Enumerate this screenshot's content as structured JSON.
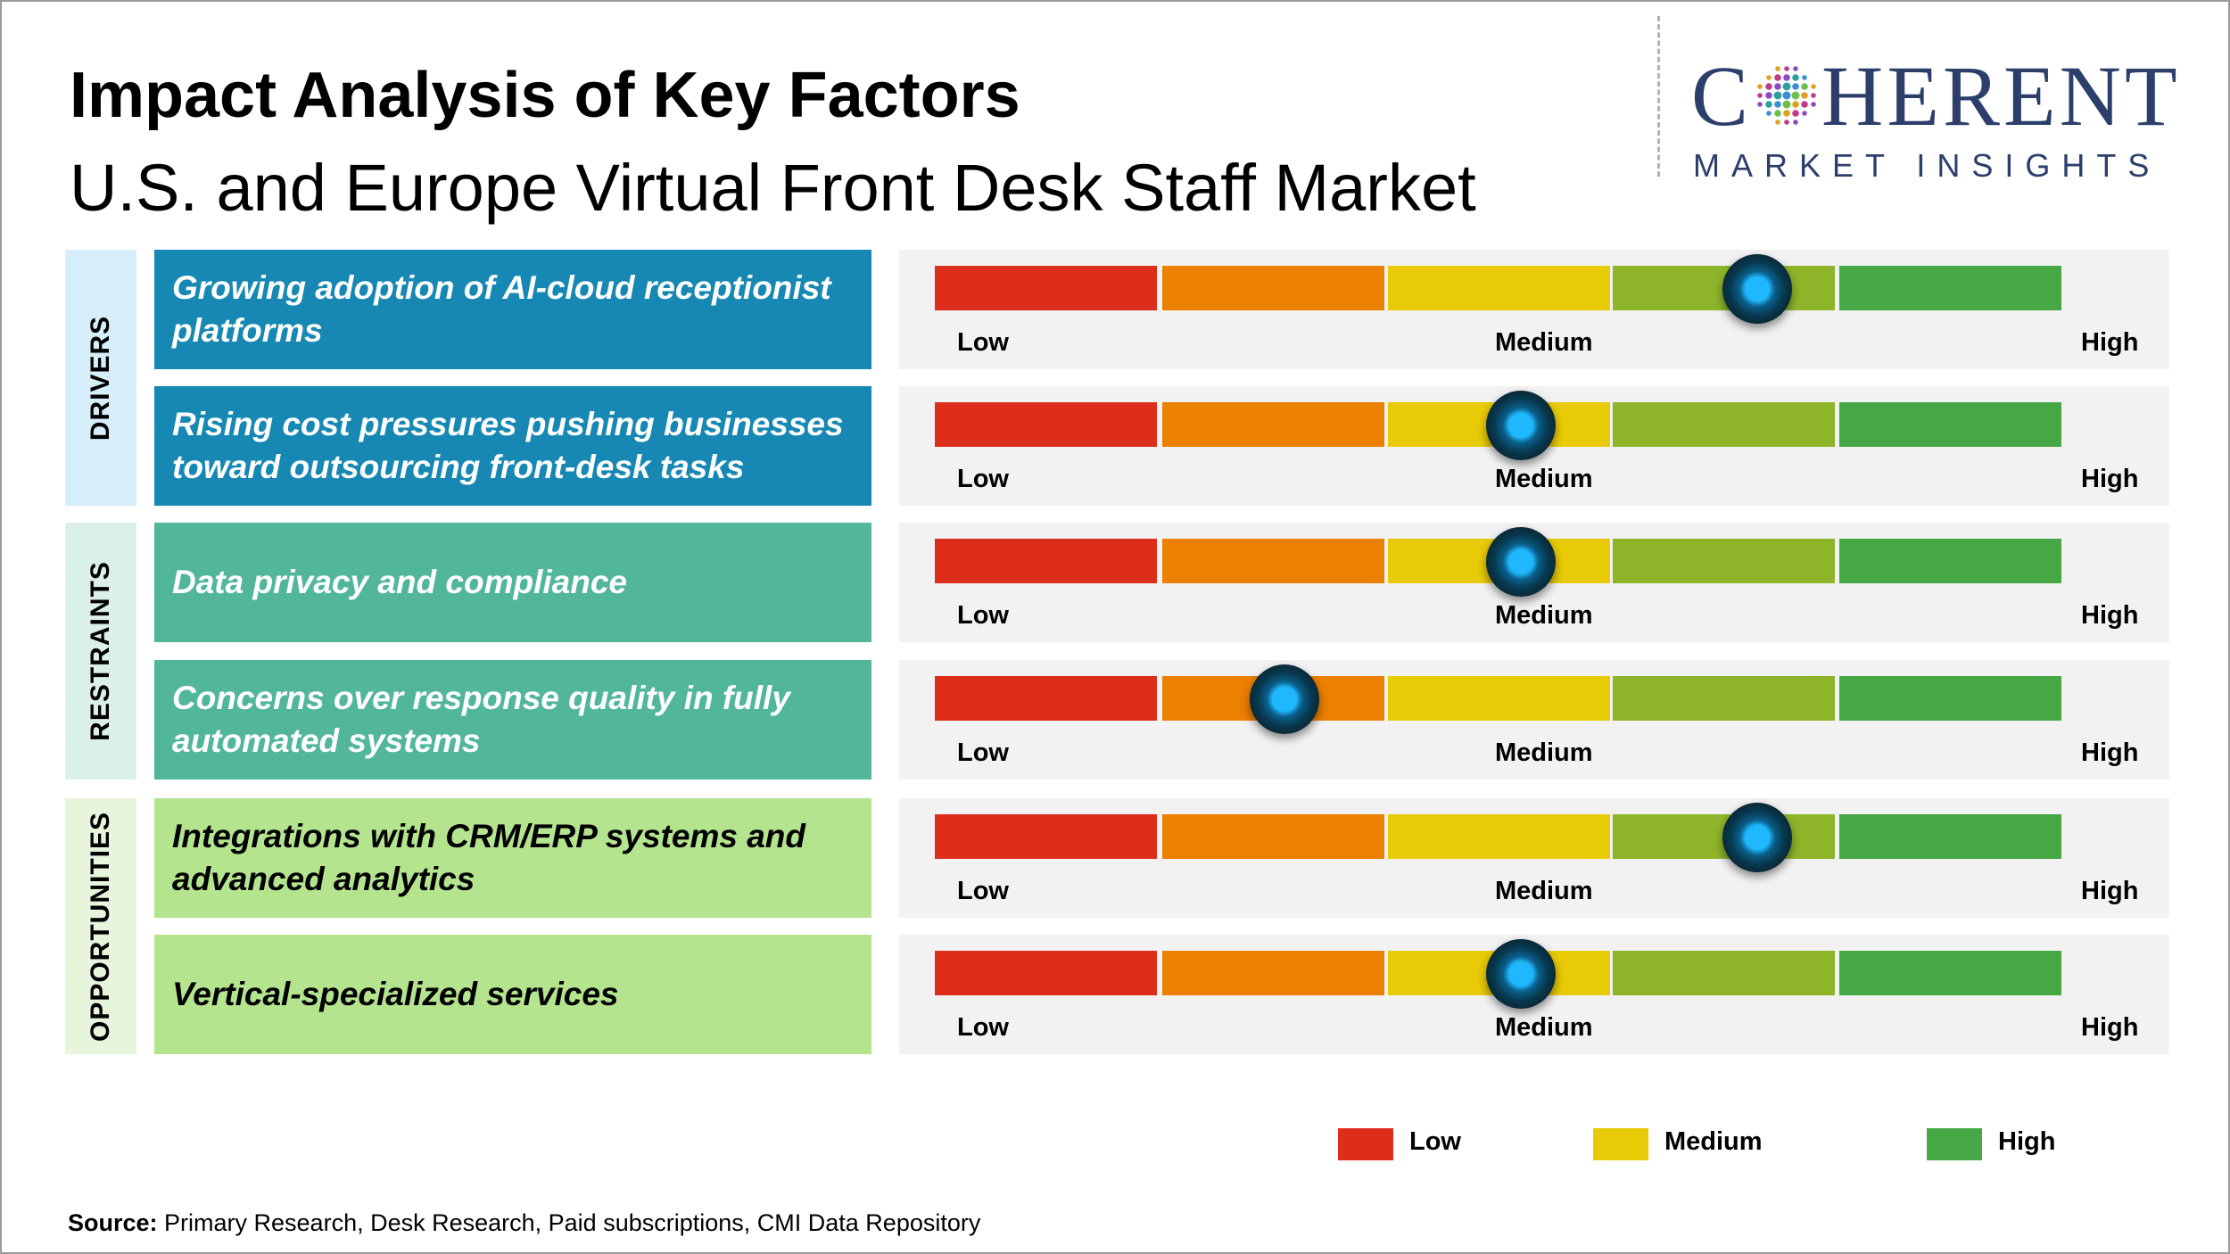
{
  "title": "Impact Analysis of Key Factors",
  "subtitle": "U.S. and Europe Virtual Front Desk Staff Market",
  "logo": {
    "word_before": "C",
    "word_after": "HERENT",
    "tagline": "MARKET INSIGHTS"
  },
  "colors": {
    "drivers_band": "#d6eef9",
    "drivers_box": "#1688b3",
    "restraints_band": "#dcf0ea",
    "restraints_box": "#52b79a",
    "opportunities_band": "#e6f5dc",
    "opportunities_box": "#b5e48f",
    "scale": [
      "#dd2e1c",
      "#ec8000",
      "#e8cb06",
      "#8eb52a",
      "#46a844"
    ],
    "marker": "#1fb8ff"
  },
  "chart_data": {
    "type": "table",
    "scale_labels": {
      "low": "Low",
      "medium": "Medium",
      "high": "High"
    },
    "categories": [
      {
        "name": "DRIVERS",
        "factors": [
          {
            "text": "Growing adoption of AI-cloud receptionist platforms",
            "impact": 0.73
          },
          {
            "text": "Rising cost pressures pushing businesses toward outsourcing front-desk tasks",
            "impact": 0.52
          }
        ]
      },
      {
        "name": "RESTRAINTS",
        "factors": [
          {
            "text": "Data privacy and compliance",
            "impact": 0.52
          },
          {
            "text": "Concerns over response quality in fully automated systems",
            "impact": 0.31
          }
        ]
      },
      {
        "name": "OPPORTUNITIES",
        "factors": [
          {
            "text": "Integrations with CRM/ERP systems and advanced analytics",
            "impact": 0.73
          },
          {
            "text": "Vertical-specialized services",
            "impact": 0.52
          }
        ]
      }
    ],
    "legend": [
      "Low",
      "Medium",
      "High"
    ]
  },
  "source": {
    "label": "Source:",
    "text": " Primary Research, Desk Research, Paid subscriptions, CMI Data Repository"
  }
}
